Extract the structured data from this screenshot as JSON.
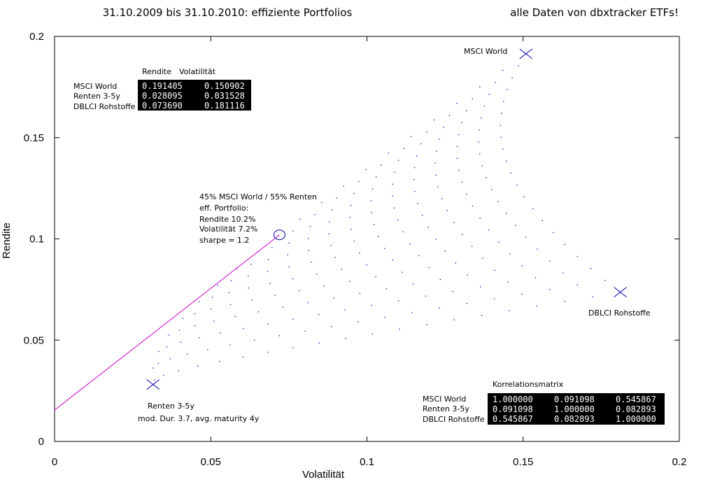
{
  "header": {
    "title": "31.10.2009 bis 31.10.2010: effiziente Portfolios",
    "note": "alle Daten von dbxtracker ETFs!"
  },
  "chart_data": {
    "type": "scatter",
    "xlabel": "Volatilität",
    "ylabel": "Rendite",
    "xlim": [
      0,
      0.2
    ],
    "ylim": [
      0,
      0.2
    ],
    "xticks": [
      0,
      0.05,
      0.1,
      0.15,
      0.2
    ],
    "yticks": [
      0,
      0.05,
      0.1,
      0.15,
      0.2
    ],
    "xtick_labels": [
      "0",
      "0.05",
      "0.1",
      "0.15",
      "0.2"
    ],
    "ytick_labels": [
      "0",
      "0.05",
      "0.1",
      "0.15",
      "0.2"
    ],
    "grid": false,
    "assets": [
      {
        "name": "MSCI World",
        "rendite": 0.191405,
        "volatility": 0.150902,
        "label": "MSCI World"
      },
      {
        "name": "Renten 3-5y",
        "rendite": 0.028095,
        "volatility": 0.031528,
        "label": "Renten 3-5y",
        "sublabel": "mod. Dur. 3.7, avg. maturity 4y"
      },
      {
        "name": "DBLCI Rohstoffe",
        "rendite": 0.07369,
        "volatility": 0.181116,
        "label": "DBLCI Rohstoffe"
      }
    ],
    "correlation": [
      [
        1.0,
        0.091098,
        0.545867
      ],
      [
        0.091098,
        1.0,
        0.082893
      ],
      [
        0.545867,
        0.082893,
        1.0
      ]
    ],
    "portfolio_cloud": {
      "weight_step": 0.05,
      "color": "#0000cc"
    },
    "efficient_portfolio": {
      "volatility": 0.072,
      "rendite": 0.102,
      "lines": [
        "45% MSCI World / 55% Renten",
        "eff. Portfolio:",
        "Rendite 10.2%",
        "Volatilität 7.2%",
        "sharpe = 1.2"
      ]
    },
    "capital_market_line": {
      "x0": 0,
      "y0": 0.0155,
      "x1": 0.072,
      "y1": 0.102,
      "color": "#cc00cc"
    },
    "marker_color": "#0000aa"
  },
  "returns_table": {
    "headers": [
      "Rendite",
      "Volatilität"
    ],
    "rows": [
      {
        "label": "MSCI World",
        "values": [
          "0.191405",
          "0.150902"
        ]
      },
      {
        "label": "Renten 3-5y",
        "values": [
          "0.028095",
          "0.031528"
        ]
      },
      {
        "label": "DBLCI Rohstoffe",
        "values": [
          "0.073690",
          "0.181116"
        ]
      }
    ]
  },
  "correlation_table": {
    "title": "Korrelationsmatrix",
    "rows": [
      {
        "label": "MSCI World",
        "values": [
          "1.000000",
          "0.091098",
          "0.545867"
        ]
      },
      {
        "label": "Renten 3-5y",
        "values": [
          "0.091098",
          "1.000000",
          "0.082893"
        ]
      },
      {
        "label": "DBLCI Rohstoffe",
        "values": [
          "0.545867",
          "0.082893",
          "1.000000"
        ]
      }
    ]
  }
}
